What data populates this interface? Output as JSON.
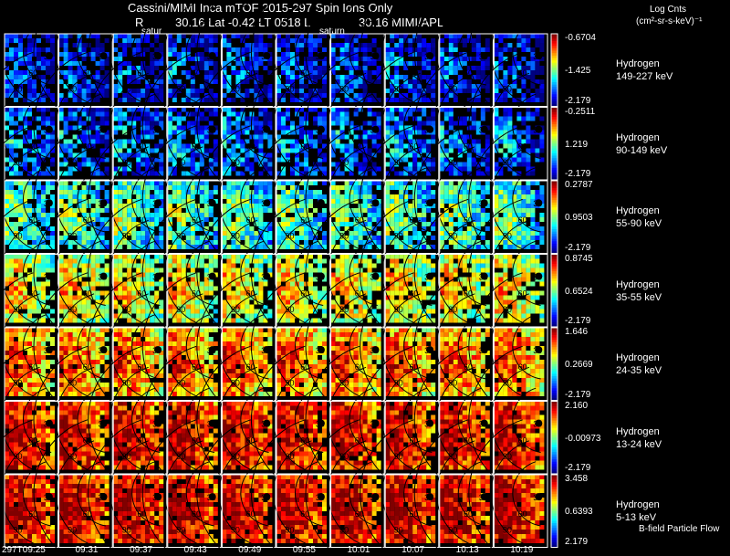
{
  "header": {
    "line1": "Cassini/MIMI Inca mTOF  2015-297   Spin   Ions Only",
    "line2_r": "R",
    "line2_mid": "30.16 Lat -0.42 LT 0518 L",
    "line2_right": "30.16  MIMI/APL",
    "overlap1": "satur",
    "overlap2": "saturn",
    "units_title": "Log Cnts",
    "units_sub": "(cm²-sr-s-keV)⁻¹"
  },
  "footer": {
    "bfield_label": "B-field Particle Flow"
  },
  "chart_data": {
    "type": "heatmap",
    "title": "Cassini/MIMI Inca mTOF 2015-297 Spin Ions Only",
    "times": [
      "297T09:25",
      "09:31",
      "09:37",
      "09:43",
      "09:49",
      "09:55",
      "10:01",
      "10:07",
      "10:13",
      "10:19"
    ],
    "contour_labels": [
      "30",
      "60",
      "90"
    ],
    "rows": [
      {
        "species": "Hydrogen",
        "energy": "149-227 keV",
        "cb_top": "-0.6704",
        "cb_mid": "-1.425",
        "cb_bot": "-2.179",
        "level": 0.12
      },
      {
        "species": "Hydrogen",
        "energy": "90-149 keV",
        "cb_top": "-0.2511",
        "cb_mid": "1.219",
        "cb_bot": "-2.179",
        "level": 0.2
      },
      {
        "species": "Hydrogen",
        "energy": "55-90 keV",
        "cb_top": "0.2787",
        "cb_mid": "0.9503",
        "cb_bot": "-2.179",
        "level": 0.4
      },
      {
        "species": "Hydrogen",
        "energy": "35-55 keV",
        "cb_top": "0.8745",
        "cb_mid": "0.6524",
        "cb_bot": "-2.179",
        "level": 0.58
      },
      {
        "species": "Hydrogen",
        "energy": "24-35 keV",
        "cb_top": "1.646",
        "cb_mid": "0.2669",
        "cb_bot": "-2.179",
        "level": 0.72
      },
      {
        "species": "Hydrogen",
        "energy": "13-24 keV",
        "cb_top": "2.160",
        "cb_mid": "-0.00973",
        "cb_bot": "-2.179",
        "level": 0.85
      },
      {
        "species": "Hydrogen",
        "energy": "5-13 keV",
        "cb_top": "3.458",
        "cb_mid": "0.6393",
        "cb_bot": "2.179",
        "level": 0.88
      }
    ]
  }
}
